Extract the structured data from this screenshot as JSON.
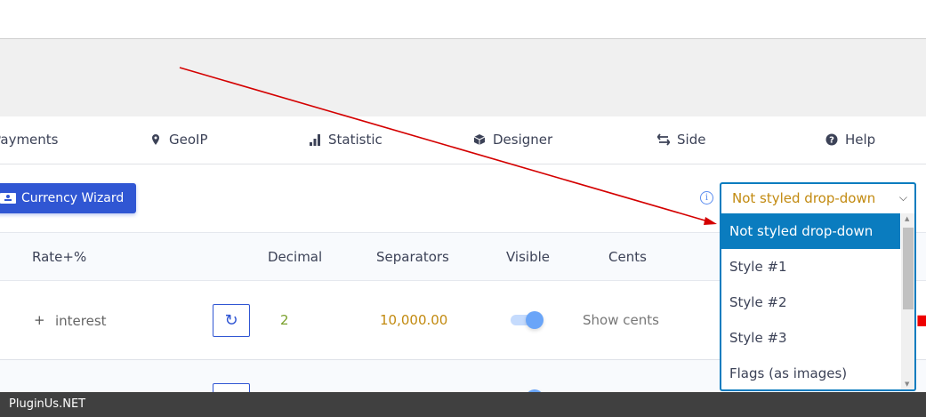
{
  "nav": {
    "items": [
      {
        "label": "Payments",
        "icon": "none"
      },
      {
        "label": "GeoIP",
        "icon": "map-marker-icon"
      },
      {
        "label": "Statistic",
        "icon": "bar-chart-icon"
      },
      {
        "label": "Designer",
        "icon": "cube-icon"
      },
      {
        "label": "Side",
        "icon": "exchange-icon"
      },
      {
        "label": "Help",
        "icon": "question-circle-icon"
      }
    ]
  },
  "toolbar": {
    "wizard_label": "Currency Wizard",
    "info_glyph": "i"
  },
  "dropdown": {
    "selected": "Not styled drop-down",
    "options": [
      "Not styled drop-down",
      "Style #1",
      "Style #2",
      "Style #3",
      "Flags (as images)"
    ]
  },
  "table": {
    "headers": [
      "Rate+%",
      "Decimal",
      "Separators",
      "Visible",
      "Cents"
    ],
    "rows": [
      {
        "plus": "+",
        "rate_label": "interest",
        "decimal": "2",
        "separators": "10,000.00",
        "visible": true,
        "cents": "Show cents"
      }
    ]
  },
  "colors": {
    "accent": "#3056d3",
    "dropdown_border": "#0a7cbf",
    "highlight": "#c28a10",
    "decimal": "#7aa02c",
    "annotation_arrow": "#d40000"
  },
  "footer": {
    "brand": "PluginUs.NET"
  }
}
